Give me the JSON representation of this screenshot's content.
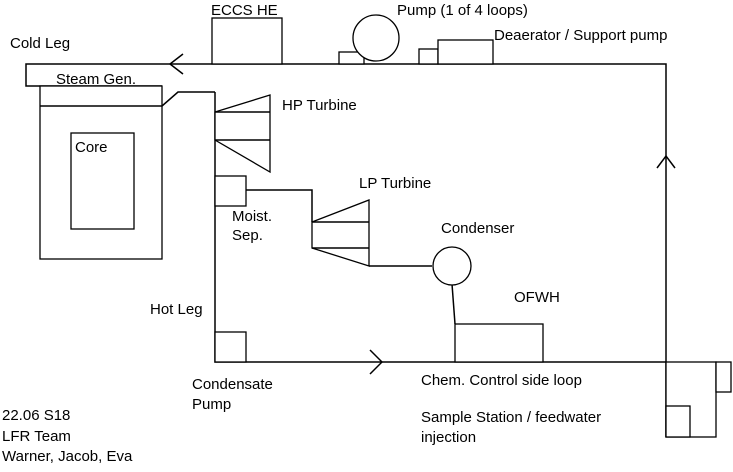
{
  "labels": {
    "eccs_he": "ECCS HE",
    "pump": "Pump (1 of 4 loops)",
    "cold_leg": "Cold Leg",
    "deaerator": "Deaerator / Support pump",
    "steam_gen": "Steam Gen.",
    "core": "Core",
    "hp_turbine": "HP Turbine",
    "lp_turbine": "LP Turbine",
    "moist_sep_1": "Moist.",
    "moist_sep_2": "Sep.",
    "condenser": "Condenser",
    "ofwh": "OFWH",
    "hot_leg": "Hot Leg",
    "condensate_pump_1": "Condensate",
    "condensate_pump_2": "Pump",
    "chem_control": "Chem. Control side loop",
    "sample_station_1": "Sample Station / feedwater",
    "sample_station_2": "injection"
  },
  "footer": {
    "line1": "22.06 S18",
    "line2": "LFR Team",
    "line3": "Warner, Jacob, Eva"
  }
}
